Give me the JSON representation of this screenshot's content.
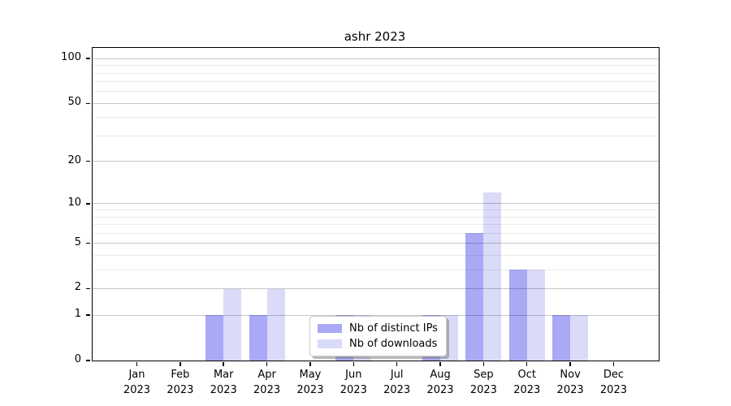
{
  "title": "ashr 2023",
  "legend": {
    "items": [
      {
        "label": "Nb of distinct IPs",
        "color": "#a9a9f6"
      },
      {
        "label": "Nb of downloads",
        "color": "#dadaf9"
      }
    ]
  },
  "chart_data": {
    "type": "bar",
    "title": "ashr 2023",
    "categories": [
      "Jan",
      "Feb",
      "Mar",
      "Apr",
      "May",
      "Jun",
      "Jul",
      "Aug",
      "Sep",
      "Oct",
      "Nov",
      "Dec"
    ],
    "year_label": "2023",
    "series": [
      {
        "name": "Nb of distinct IPs",
        "color": "#a9a9f6",
        "values": [
          0,
          0,
          1,
          1,
          0,
          1,
          0,
          1,
          6,
          3,
          1,
          0
        ]
      },
      {
        "name": "Nb of downloads",
        "color": "#dadaf9",
        "values": [
          0,
          0,
          2,
          2,
          0,
          1,
          0,
          1,
          12,
          3,
          1,
          0
        ]
      }
    ],
    "yscale": "log1p",
    "ylim": [
      0,
      118
    ],
    "yticks": [
      0,
      1,
      2,
      5,
      10,
      20,
      50,
      100
    ],
    "minor_yticks": [
      3,
      4,
      6,
      7,
      8,
      9,
      30,
      40,
      60,
      70,
      80,
      90
    ],
    "grid": "both",
    "xlabel": "",
    "ylabel": "",
    "legend_position": "inside lower center",
    "bar_colors": {
      "distinct_ips": "#a9a9f6",
      "downloads": "#dadaf9"
    },
    "grid_major_color": "#c7c7c7",
    "grid_minor_color": "#ebebeb"
  }
}
